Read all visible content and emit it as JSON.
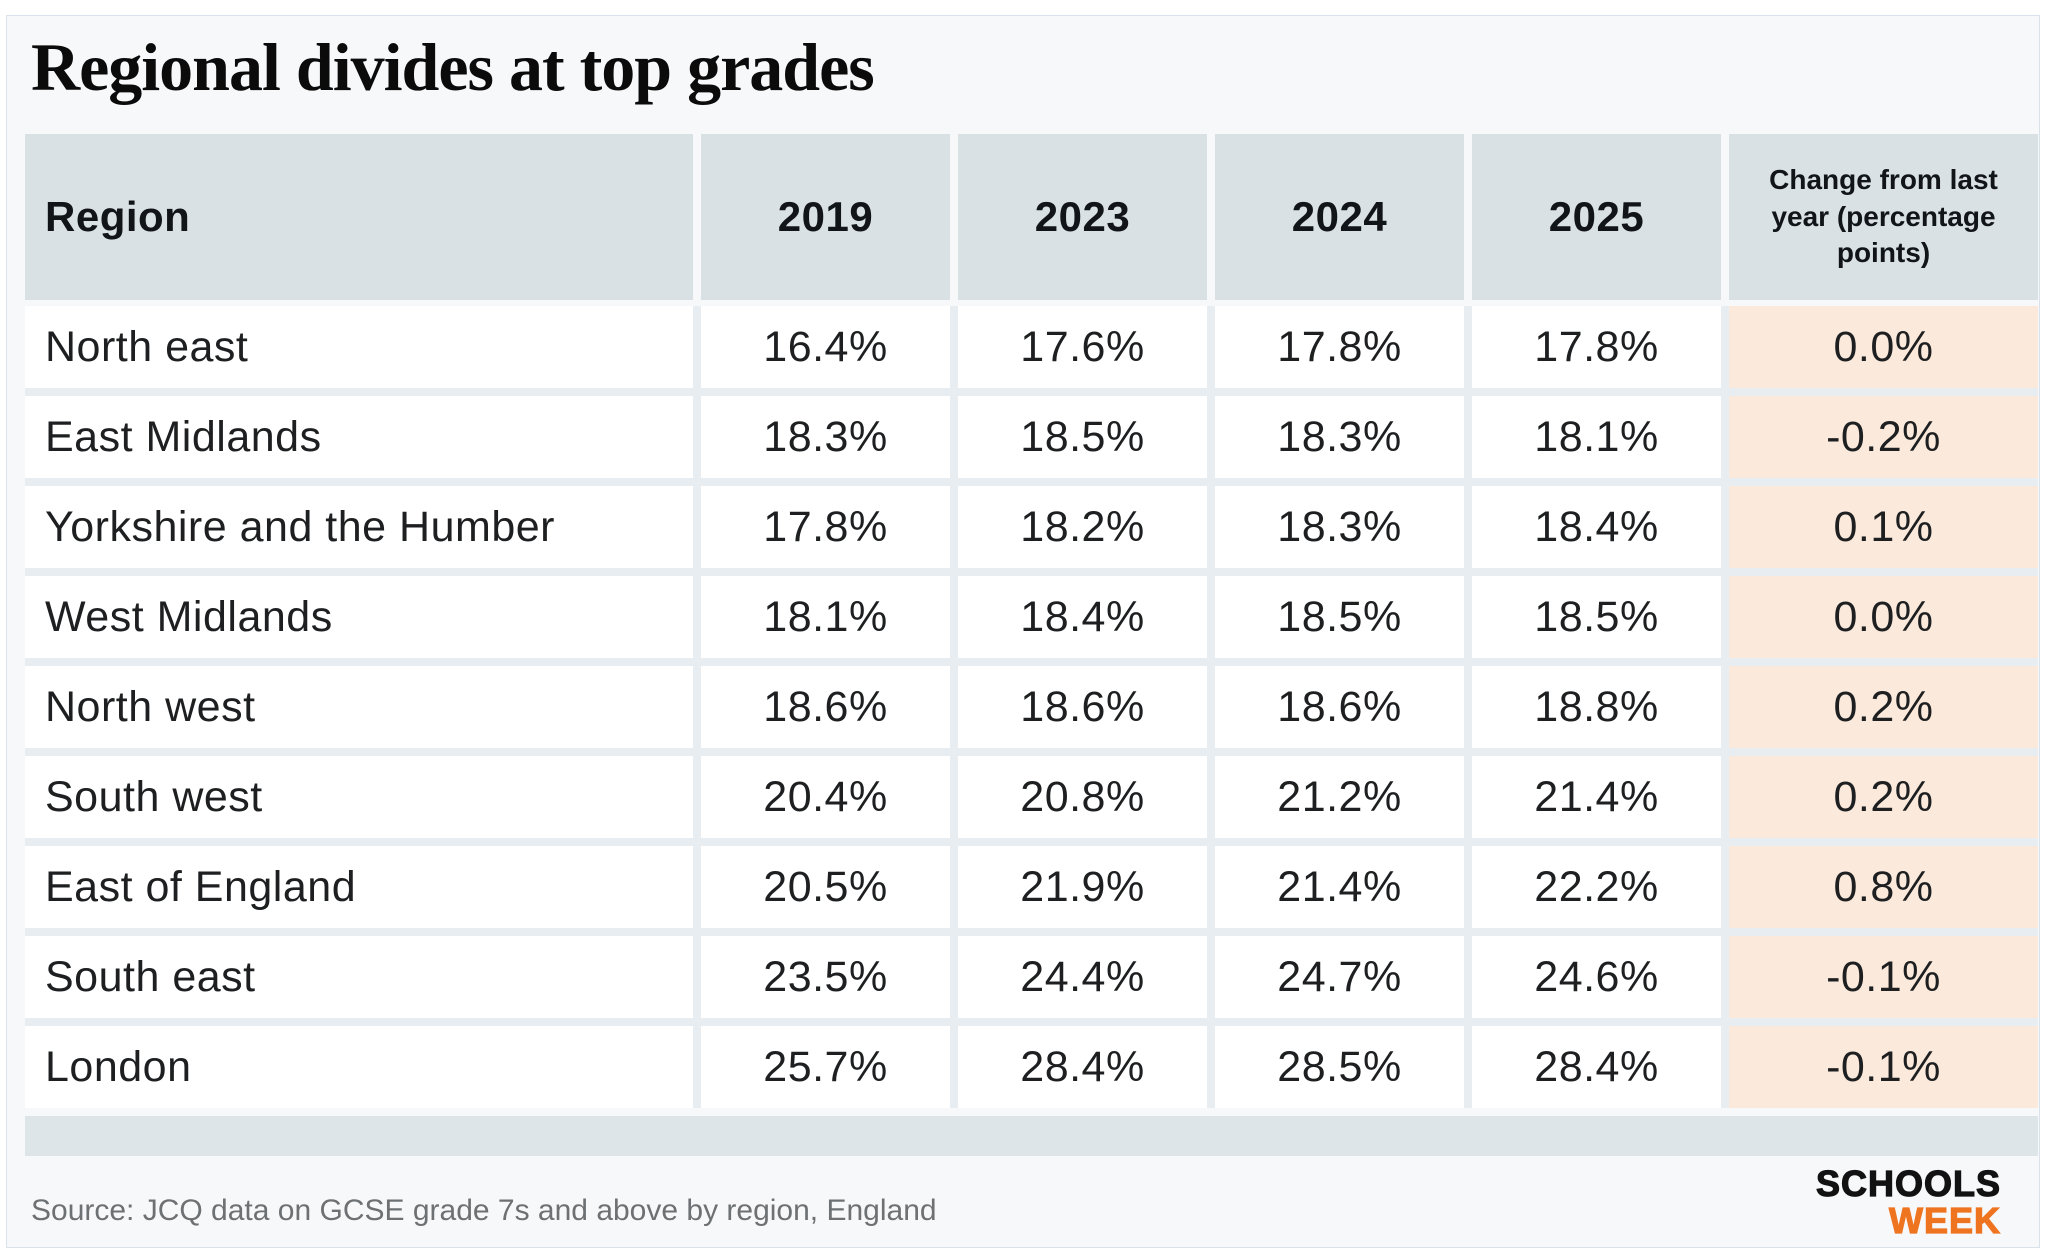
{
  "title": "Regional divides at top grades",
  "table": {
    "headers": [
      "Region",
      "2019",
      "2023",
      "2024",
      "2025",
      "Change from last year (percentage points)"
    ],
    "rows": [
      {
        "region": "North east",
        "values": [
          "16.4%",
          "17.6%",
          "17.8%",
          "17.8%"
        ],
        "change": "0.0%"
      },
      {
        "region": "East Midlands",
        "values": [
          "18.3%",
          "18.5%",
          "18.3%",
          "18.1%"
        ],
        "change": "-0.2%"
      },
      {
        "region": "Yorkshire and the Humber",
        "values": [
          "17.8%",
          "18.2%",
          "18.3%",
          "18.4%"
        ],
        "change": "0.1%"
      },
      {
        "region": "West Midlands",
        "values": [
          "18.1%",
          "18.4%",
          "18.5%",
          "18.5%"
        ],
        "change": "0.0%"
      },
      {
        "region": "North west",
        "values": [
          "18.6%",
          "18.6%",
          "18.6%",
          "18.8%"
        ],
        "change": "0.2%"
      },
      {
        "region": "South west",
        "values": [
          "20.4%",
          "20.8%",
          "21.2%",
          "21.4%"
        ],
        "change": "0.2%"
      },
      {
        "region": "East of England",
        "values": [
          "20.5%",
          "21.9%",
          "21.4%",
          "22.2%"
        ],
        "change": "0.8%"
      },
      {
        "region": "South east",
        "values": [
          "23.5%",
          "24.4%",
          "24.7%",
          "24.6%"
        ],
        "change": "-0.1%"
      },
      {
        "region": "London",
        "values": [
          "25.7%",
          "28.4%",
          "28.5%",
          "28.4%"
        ],
        "change": "-0.1%"
      }
    ]
  },
  "footer": {
    "source": "Source: JCQ data on GCSE grade 7s and above by region, England",
    "logo_line1": "SCHOOLS",
    "logo_line2": "WEEK"
  },
  "colors": {
    "panel_background": "#f7f8fa",
    "header_cell": "#d9e1e4",
    "row_cell": "#ffffff",
    "change_cell": "#fbe9dc",
    "separator": "#e7edf0",
    "footer_band": "#dde5e9",
    "source_text": "#6d7173",
    "logo_orange": "#ee7420",
    "text": "#1d1f20"
  },
  "chart_data": {
    "type": "table",
    "title": "Regional divides at top grades",
    "columns": [
      "Region",
      "2019",
      "2023",
      "2024",
      "2025",
      "Change from last year (percentage points)"
    ],
    "rows": [
      [
        "North east",
        16.4,
        17.6,
        17.8,
        17.8,
        0.0
      ],
      [
        "East Midlands",
        18.3,
        18.5,
        18.3,
        18.1,
        -0.2
      ],
      [
        "Yorkshire and the Humber",
        17.8,
        18.2,
        18.3,
        18.4,
        0.1
      ],
      [
        "West Midlands",
        18.1,
        18.4,
        18.5,
        18.5,
        0.0
      ],
      [
        "North west",
        18.6,
        18.6,
        18.6,
        18.8,
        0.2
      ],
      [
        "South west",
        20.4,
        20.8,
        21.2,
        21.4,
        0.2
      ],
      [
        "East of England",
        20.5,
        21.9,
        21.4,
        22.2,
        0.8
      ],
      [
        "South east",
        23.5,
        24.4,
        24.7,
        24.6,
        -0.1
      ],
      [
        "London",
        25.7,
        28.4,
        28.5,
        28.4,
        -0.1
      ]
    ],
    "units": "percent of GCSE entries graded 7 or above",
    "source": "JCQ data, England"
  }
}
